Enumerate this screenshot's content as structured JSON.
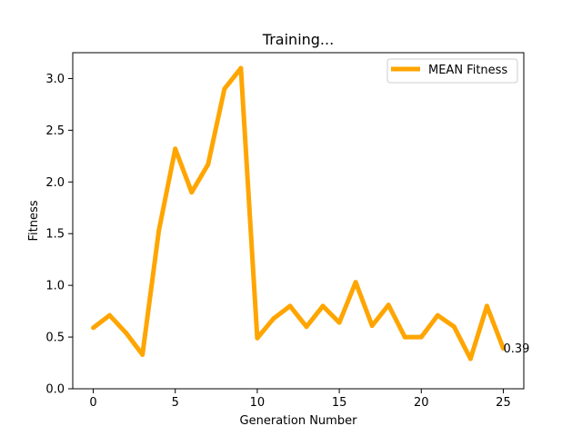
{
  "chart_data": {
    "type": "line",
    "title": "Training...",
    "xlabel": "Generation Number",
    "ylabel": "Fitness",
    "xlim": [
      -1.25,
      26.25
    ],
    "ylim": [
      0,
      3.25
    ],
    "xticks": [
      0,
      5,
      10,
      15,
      20,
      25
    ],
    "yticks": [
      0.0,
      0.5,
      1.0,
      1.5,
      2.0,
      2.5,
      3.0
    ],
    "xtick_labels": [
      "0",
      "5",
      "10",
      "15",
      "20",
      "25"
    ],
    "ytick_labels": [
      "0.0",
      "0.5",
      "1.0",
      "1.5",
      "2.0",
      "2.5",
      "3.0"
    ],
    "grid": false,
    "legend_position": "upper right",
    "series": [
      {
        "name": "MEAN Fitness",
        "color": "#ffa500",
        "x": [
          0,
          1,
          2,
          3,
          4,
          5,
          6,
          7,
          8,
          9,
          10,
          11,
          12,
          13,
          14,
          15,
          16,
          17,
          18,
          19,
          20,
          21,
          22,
          23,
          24,
          25
        ],
        "values": [
          0.59,
          0.71,
          0.54,
          0.33,
          1.53,
          2.32,
          1.9,
          2.17,
          2.9,
          3.1,
          0.49,
          0.68,
          0.8,
          0.6,
          0.8,
          0.64,
          1.03,
          0.61,
          0.81,
          0.5,
          0.5,
          0.71,
          0.6,
          0.29,
          0.8,
          0.39
        ]
      }
    ],
    "annotations": [
      {
        "x": 25,
        "y": 0.39,
        "text": "0.39"
      }
    ]
  }
}
